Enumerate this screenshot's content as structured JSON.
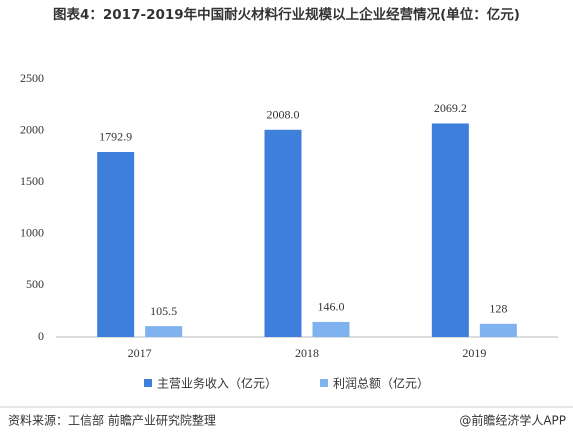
{
  "chart_data": {
    "type": "bar",
    "title": "图表4：2017-2019年中国耐火材料行业规模以上企业经营情况(单位：亿元)",
    "categories": [
      "2017",
      "2018",
      "2019"
    ],
    "series": [
      {
        "name": "主营业务收入（亿元）",
        "color": "#3e7fdc",
        "values": [
          1792.9,
          2008.0,
          2069.2
        ],
        "value_labels": [
          "1792.9",
          "2008.0",
          "2069.2"
        ]
      },
      {
        "name": "利润总额（亿元）",
        "color": "#7fb2ee",
        "values": [
          105.5,
          146.0,
          128
        ],
        "value_labels": [
          "105.5",
          "146.0",
          "128"
        ]
      }
    ],
    "ylim": [
      0,
      2500
    ],
    "yticks": [
      0,
      500,
      1000,
      1500,
      2000,
      2500
    ],
    "grid": false,
    "legend": "bottom",
    "source": "资料来源：工信部 前瞻产业研究院整理",
    "brand": "@前瞻经济学人APP"
  }
}
